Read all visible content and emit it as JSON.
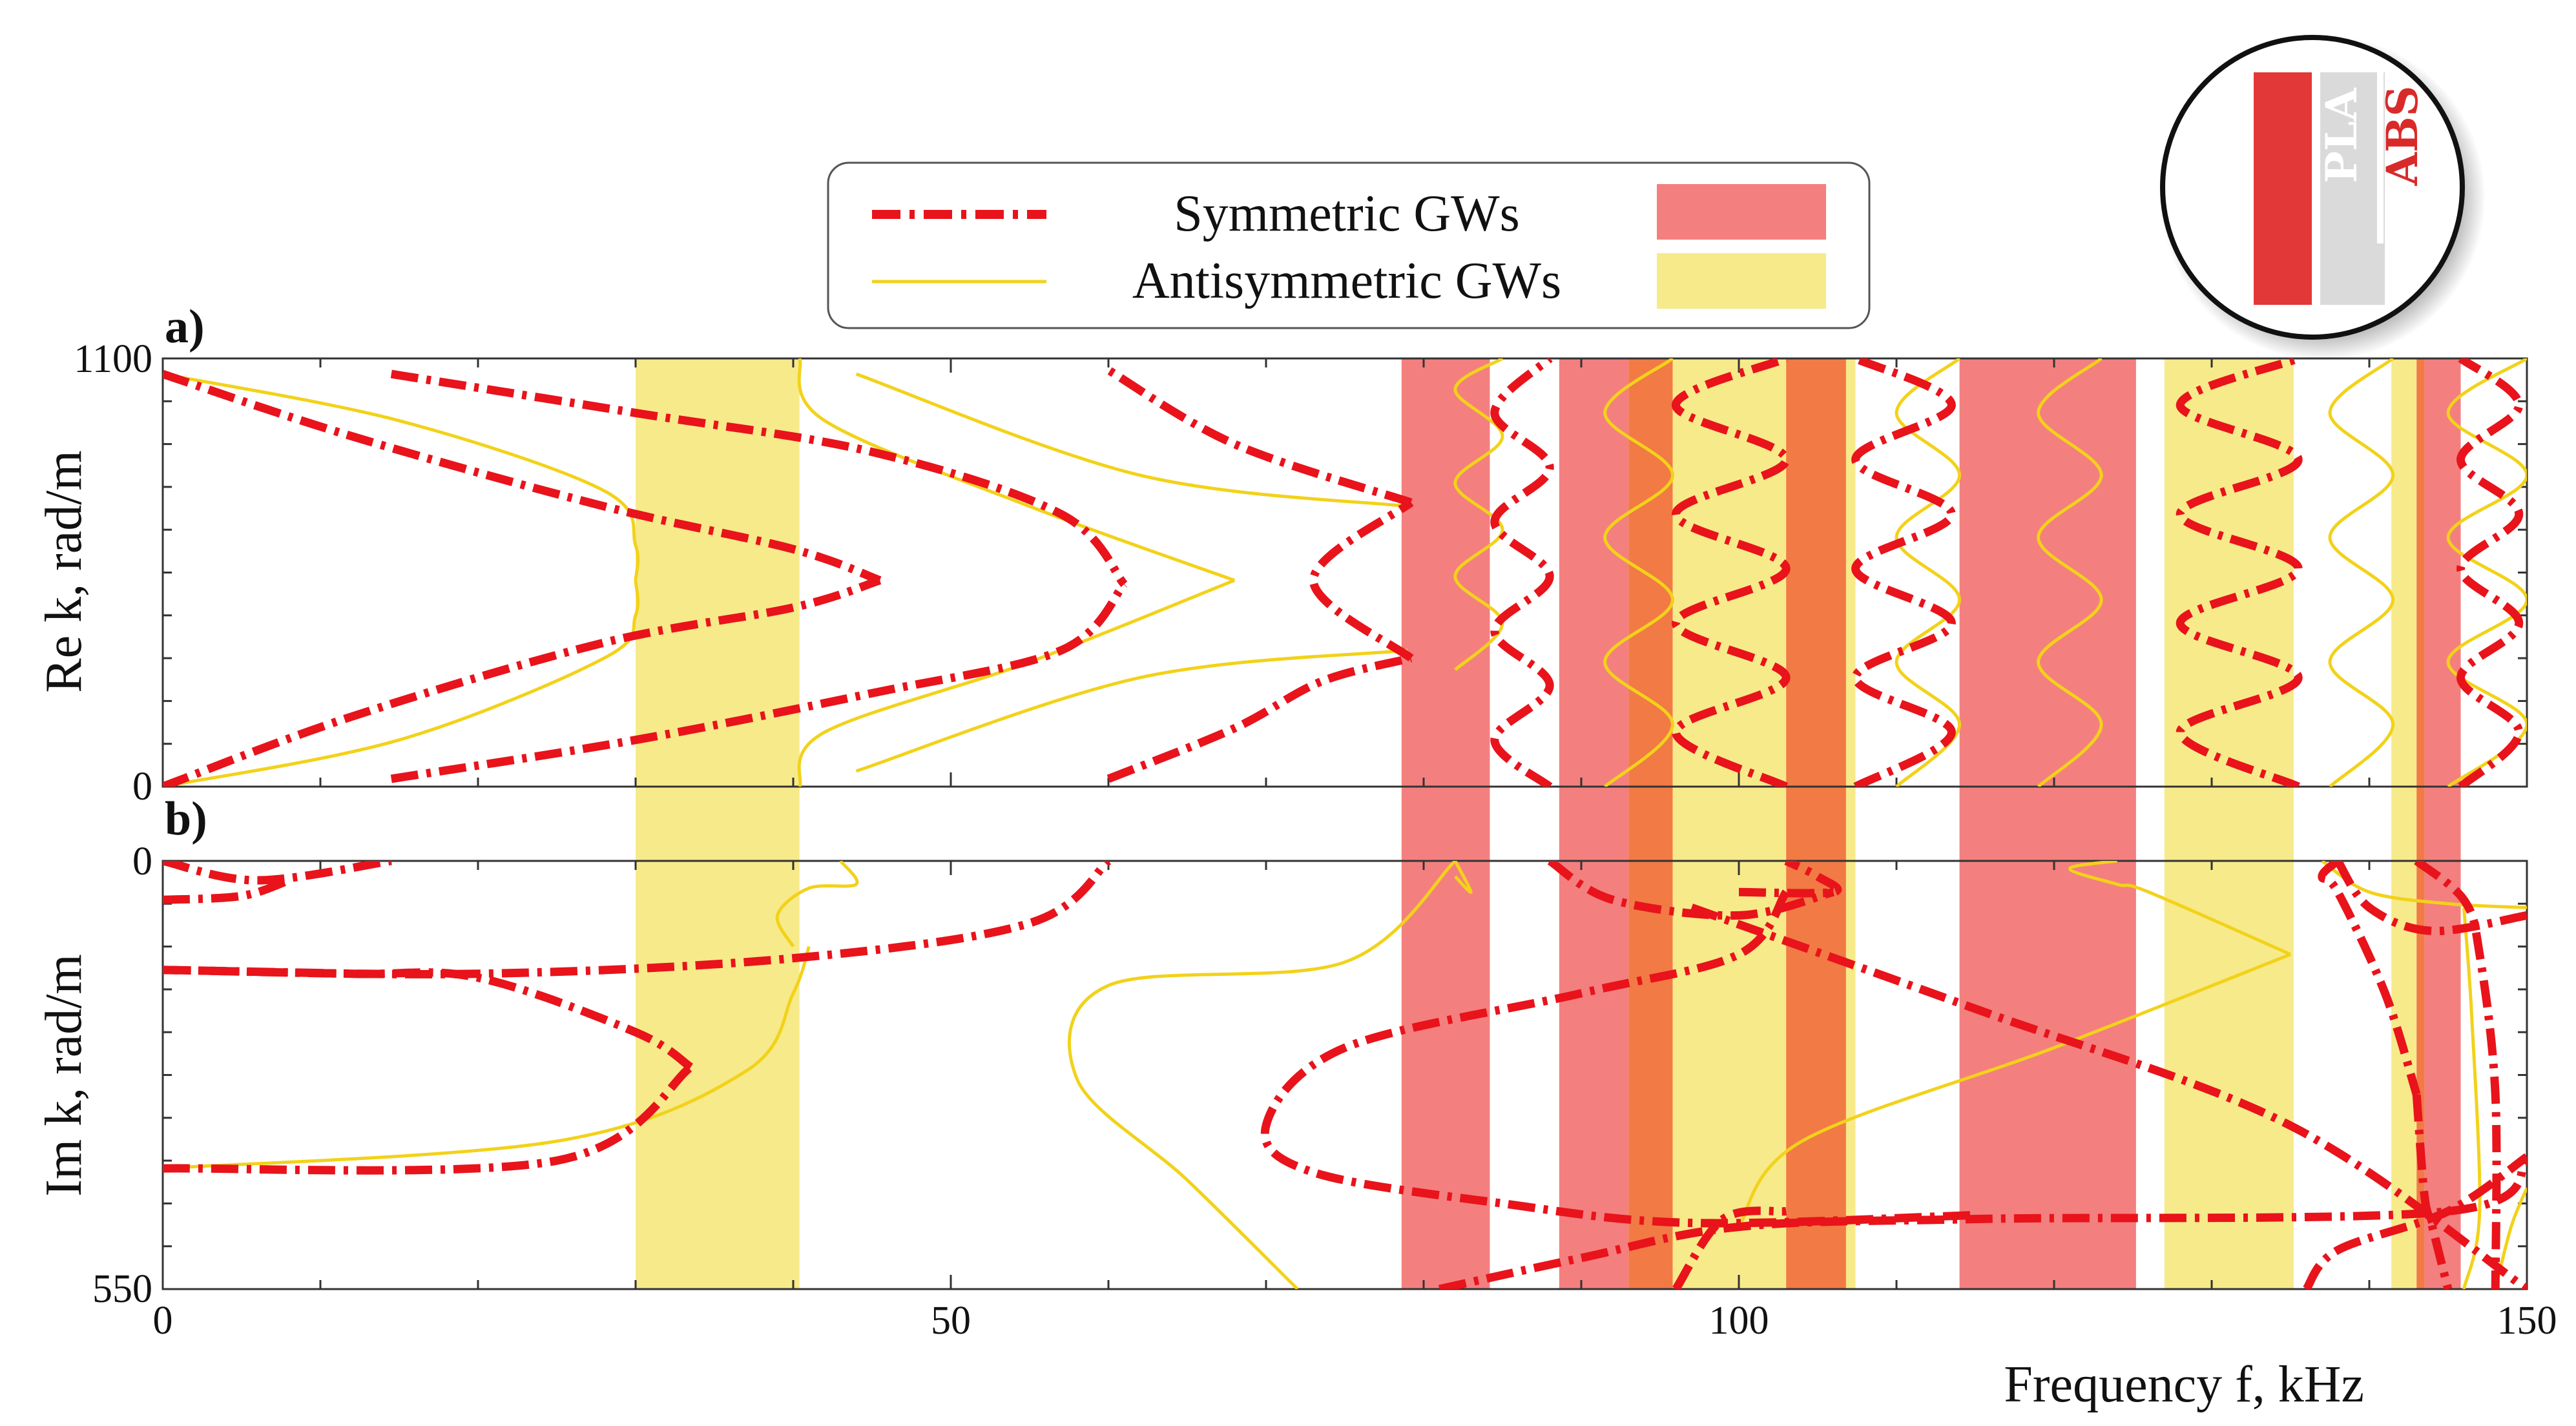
{
  "legend": {
    "symmetric_label": "Symmetric GWs",
    "antisymmetric_label": "Antisymmetric GWs"
  },
  "inset": {
    "left_label": "PLA",
    "right_label": "ABS"
  },
  "colors": {
    "symmetric": "#e8131b",
    "antisymmetric": "#f2d21a",
    "symmetric_band": "#f47f7f",
    "antisymmetric_band": "#f7ea8a",
    "overlap_band": "#f27a45",
    "inset_pla": "#e33838",
    "inset_abs": "#dadada"
  },
  "chart_data": [
    {
      "panel": "a)",
      "type": "line",
      "ylabel": "Re k, rad/m",
      "xlim": [
        0,
        150
      ],
      "ylim": [
        0,
        1100
      ],
      "xticks": [
        0,
        50,
        100,
        150
      ],
      "yticks": [
        0,
        1100
      ],
      "bands": [
        {
          "type": "antisymmetric",
          "x": [
            30,
            40.4
          ]
        },
        {
          "type": "symmetric",
          "x": [
            78.6,
            84.2
          ]
        },
        {
          "type": "symmetric",
          "x": [
            88.6,
            93
          ]
        },
        {
          "type": "overlap",
          "x": [
            93,
            95.8
          ]
        },
        {
          "type": "antisymmetric",
          "x": [
            95.8,
            103
          ]
        },
        {
          "type": "overlap",
          "x": [
            103,
            106.8
          ]
        },
        {
          "type": "antisymmetric",
          "x": [
            106.8,
            107.4
          ]
        },
        {
          "type": "symmetric",
          "x": [
            114,
            125.2
          ]
        },
        {
          "type": "antisymmetric",
          "x": [
            127,
            135.2
          ]
        },
        {
          "type": "antisymmetric",
          "x": [
            141.4,
            143
          ]
        },
        {
          "type": "overlap",
          "x": [
            143,
            143.5
          ]
        },
        {
          "type": "symmetric",
          "x": [
            143.5,
            145.8
          ]
        }
      ],
      "series": [
        {
          "name": "Symmetric GWs",
          "type": "symmetric",
          "x": [
            0,
            12,
            28,
            40,
            45.5
          ],
          "y": [
            0,
            180,
            370,
            460,
            530
          ]
        },
        {
          "name": "Symmetric GWs",
          "type": "symmetric",
          "x": [
            0,
            12,
            28,
            40,
            45.5
          ],
          "y": [
            1060,
            900,
            720,
            610,
            530
          ]
        },
        {
          "name": "Symmetric GWs",
          "type": "symmetric",
          "x": [
            14.5,
            30,
            45,
            57,
            61
          ],
          "y": [
            20,
            120,
            240,
            350,
            520
          ]
        },
        {
          "name": "Symmetric GWs",
          "type": "symmetric",
          "x": [
            14.5,
            30,
            45,
            57,
            61
          ],
          "y": [
            1060,
            960,
            860,
            700,
            520
          ]
        },
        {
          "name": "Symmetric GWs",
          "type": "symmetric",
          "x": [
            60,
            68,
            73.5,
            79.2
          ],
          "y": [
            20,
            150,
            270,
            330
          ]
        },
        {
          "name": "Symmetric GWs",
          "type": "symmetric",
          "x": [
            79.2,
            73,
            79.2
          ],
          "y": [
            330,
            530,
            730
          ]
        },
        {
          "name": "Symmetric GWs",
          "type": "symmetric",
          "x": [
            79.2,
            68,
            60
          ],
          "y": [
            730,
            880,
            1070
          ]
        },
        {
          "name": "Symmetric GWs",
          "type": "symmetric",
          "x": [
            88,
            84.5,
            88,
            84.5,
            88,
            84.5,
            88,
            84.5,
            88
          ],
          "y": [
            0,
            120,
            260,
            400,
            540,
            680,
            820,
            960,
            1100
          ]
        },
        {
          "name": "Symmetric GWs",
          "type": "symmetric",
          "x": [
            103,
            96,
            103,
            96,
            103,
            96,
            103,
            96,
            103
          ],
          "y": [
            0,
            140,
            280,
            420,
            560,
            700,
            840,
            980,
            1100
          ]
        },
        {
          "name": "Symmetric GWs",
          "type": "symmetric",
          "x": [
            107.4,
            113.5,
            107.4,
            113.5,
            107.4,
            113.5,
            107.4,
            113.5,
            107.4
          ],
          "y": [
            0,
            140,
            280,
            420,
            560,
            700,
            840,
            980,
            1100
          ]
        },
        {
          "name": "Symmetric GWs",
          "type": "symmetric",
          "x": [
            135.5,
            128,
            135.5,
            128,
            135.5,
            128,
            135.5,
            128,
            135.5
          ],
          "y": [
            0,
            140,
            280,
            420,
            560,
            700,
            840,
            980,
            1100
          ]
        },
        {
          "name": "Symmetric GWs",
          "type": "symmetric",
          "x": [
            145.8,
            149.5,
            145.8,
            149.5,
            145.8,
            149.5,
            145.8,
            149.5,
            145.8
          ],
          "y": [
            0,
            140,
            280,
            420,
            560,
            700,
            840,
            980,
            1100
          ]
        },
        {
          "name": "Antisymmetric GWs",
          "type": "antisymmetric",
          "x": [
            0,
            15,
            28,
            30,
            30
          ],
          "y": [
            0,
            120,
            330,
            440,
            530
          ]
        },
        {
          "name": "Antisymmetric GWs",
          "type": "antisymmetric",
          "x": [
            30,
            30,
            28,
            15,
            0
          ],
          "y": [
            530,
            620,
            760,
            940,
            1060
          ]
        },
        {
          "name": "Antisymmetric GWs",
          "type": "antisymmetric",
          "x": [
            40.4,
            42,
            55,
            68
          ],
          "y": [
            0,
            140,
            320,
            530
          ]
        },
        {
          "name": "Antisymmetric GWs",
          "type": "antisymmetric",
          "x": [
            68,
            55,
            42,
            40.4
          ],
          "y": [
            530,
            720,
            940,
            1100
          ]
        },
        {
          "name": "Antisymmetric GWs",
          "type": "antisymmetric",
          "x": [
            44,
            62,
            79
          ],
          "y": [
            40,
            280,
            350
          ]
        },
        {
          "name": "Antisymmetric GWs",
          "type": "antisymmetric",
          "x": [
            79,
            62,
            44
          ],
          "y": [
            720,
            800,
            1060
          ]
        },
        {
          "name": "Antisymmetric GWs",
          "type": "antisymmetric",
          "x": [
            82,
            85,
            82,
            85,
            82,
            85,
            82,
            85
          ],
          "y": [
            300,
            420,
            540,
            660,
            780,
            900,
            1020,
            1100
          ]
        },
        {
          "name": "Antisymmetric GWs",
          "type": "antisymmetric",
          "x": [
            91.5,
            95.8,
            91.5,
            95.8,
            91.5,
            95.8,
            91.5,
            95.8
          ],
          "y": [
            0,
            160,
            320,
            480,
            640,
            800,
            960,
            1100
          ]
        },
        {
          "name": "Antisymmetric GWs",
          "type": "antisymmetric",
          "x": [
            110,
            114,
            110,
            114,
            110,
            114,
            110,
            114
          ],
          "y": [
            0,
            160,
            320,
            480,
            640,
            800,
            960,
            1100
          ]
        },
        {
          "name": "Antisymmetric GWs",
          "type": "antisymmetric",
          "x": [
            119,
            123,
            119,
            123,
            119,
            123,
            119,
            123
          ],
          "y": [
            0,
            160,
            320,
            480,
            640,
            800,
            960,
            1100
          ]
        },
        {
          "name": "Antisymmetric GWs",
          "type": "antisymmetric",
          "x": [
            137.5,
            141.5,
            137.5,
            141.5,
            137.5,
            141.5,
            137.5,
            141.5
          ],
          "y": [
            0,
            160,
            320,
            480,
            640,
            800,
            960,
            1100
          ]
        },
        {
          "name": "Antisymmetric GWs",
          "type": "antisymmetric",
          "x": [
            145,
            150,
            145,
            150,
            145,
            150,
            145,
            150
          ],
          "y": [
            0,
            160,
            320,
            480,
            640,
            800,
            960,
            1100
          ]
        }
      ]
    },
    {
      "panel": "b)",
      "type": "line",
      "ylabel": "Im k, rad/m",
      "xlabel": "Frequency f, kHz",
      "xlim": [
        0,
        150
      ],
      "ylim": [
        550,
        0
      ],
      "xticks": [
        0,
        50,
        100,
        150
      ],
      "yticks": [
        0,
        550
      ],
      "series": [
        {
          "name": "Symmetric GWs",
          "type": "symmetric",
          "x": [
            0,
            6,
            14.5
          ],
          "y": [
            0,
            25,
            0
          ]
        },
        {
          "name": "Symmetric GWs",
          "type": "symmetric",
          "x": [
            0,
            5,
            8
          ],
          "y": [
            50,
            45,
            25
          ]
        },
        {
          "name": "Symmetric GWs",
          "type": "symmetric",
          "x": [
            0,
            20,
            40,
            55,
            60
          ],
          "y": [
            140,
            145,
            125,
            80,
            0
          ]
        },
        {
          "name": "Symmetric GWs",
          "type": "symmetric",
          "x": [
            0,
            25,
            33.5
          ],
          "y": [
            395,
            385,
            265
          ]
        },
        {
          "name": "Symmetric GWs",
          "type": "symmetric",
          "x": [
            33.5,
            30,
            20,
            12,
            0
          ],
          "y": [
            265,
            220,
            150,
            145,
            140
          ]
        },
        {
          "name": "Symmetric GWs",
          "type": "symmetric",
          "x": [
            103,
            100,
            90,
            75,
            70,
            73,
            85,
            97,
            115
          ],
          "y": [
            40,
            120,
            170,
            240,
            340,
            400,
            440,
            465,
            455
          ]
        },
        {
          "name": "Symmetric GWs",
          "type": "symmetric",
          "x": [
            81,
            90,
            100,
            115,
            145,
            150
          ],
          "y": [
            550,
            510,
            470,
            460,
            450,
            385
          ]
        },
        {
          "name": "Symmetric GWs",
          "type": "symmetric",
          "x": [
            88,
            92,
            100,
            106
          ],
          "y": [
            0,
            50,
            70,
            40
          ]
        },
        {
          "name": "Symmetric GWs",
          "type": "symmetric",
          "x": [
            100,
            106,
            105,
            103
          ],
          "y": [
            40,
            40,
            20,
            0
          ]
        },
        {
          "name": "Symmetric GWs",
          "type": "symmetric",
          "x": [
            97,
            115,
            135,
            150
          ],
          "y": [
            60,
            190,
            340,
            550
          ]
        },
        {
          "name": "Symmetric GWs",
          "type": "symmetric",
          "x": [
            136,
            138,
            145,
            150
          ],
          "y": [
            550,
            500,
            450,
            380
          ]
        },
        {
          "name": "Symmetric GWs",
          "type": "symmetric",
          "x": [
            138,
            140,
            144,
            150
          ],
          "y": [
            0,
            60,
            90,
            70
          ]
        },
        {
          "name": "Symmetric GWs",
          "type": "symmetric",
          "x": [
            143,
            146,
            147,
            148,
            148
          ],
          "y": [
            0,
            50,
            120,
            300,
            550
          ]
        },
        {
          "name": "Symmetric GWs",
          "type": "symmetric",
          "x": [
            138,
            137,
            138,
            141,
            143
          ],
          "y": [
            0,
            20,
            40,
            170,
            300
          ]
        },
        {
          "name": "Symmetric GWs",
          "type": "symmetric",
          "x": [
            143,
            143.5,
            144,
            145
          ],
          "y": [
            300,
            430,
            470,
            550
          ]
        },
        {
          "name": "Symmetric GWs",
          "type": "symmetric",
          "x": [
            96,
            99,
            103
          ],
          "y": [
            550,
            460,
            450
          ]
        },
        {
          "name": "Antisymmetric GWs",
          "type": "antisymmetric",
          "x": [
            0,
            25,
            37,
            40,
            41
          ],
          "y": [
            395,
            360,
            270,
            170,
            110
          ]
        },
        {
          "name": "Antisymmetric GWs",
          "type": "antisymmetric",
          "x": [
            40,
            39,
            41,
            44,
            43
          ],
          "y": [
            110,
            70,
            35,
            30,
            0
          ]
        },
        {
          "name": "Antisymmetric GWs",
          "type": "antisymmetric",
          "x": [
            82,
            75,
            60,
            58,
            65,
            72
          ],
          "y": [
            0,
            130,
            160,
            280,
            410,
            550
          ]
        },
        {
          "name": "Antisymmetric GWs",
          "type": "antisymmetric",
          "x": [
            82,
            83,
            82
          ],
          "y": [
            0,
            40,
            20
          ]
        },
        {
          "name": "Antisymmetric GWs",
          "type": "antisymmetric",
          "x": [
            100,
            104,
            120,
            135
          ],
          "y": [
            470,
            360,
            240,
            120
          ]
        },
        {
          "name": "Antisymmetric GWs",
          "type": "antisymmetric",
          "x": [
            135,
            126,
            124,
            121,
            124
          ],
          "y": [
            120,
            40,
            30,
            10,
            0
          ]
        },
        {
          "name": "Antisymmetric GWs",
          "type": "antisymmetric",
          "x": [
            137,
            140,
            145,
            150
          ],
          "y": [
            0,
            40,
            55,
            60
          ]
        },
        {
          "name": "Antisymmetric GWs",
          "type": "antisymmetric",
          "x": [
            146,
            146.5,
            147,
            146
          ],
          "y": [
            60,
            200,
            450,
            550
          ]
        },
        {
          "name": "Antisymmetric GWs",
          "type": "antisymmetric",
          "x": [
            148,
            149,
            150
          ],
          "y": [
            550,
            470,
            420
          ]
        }
      ]
    }
  ]
}
